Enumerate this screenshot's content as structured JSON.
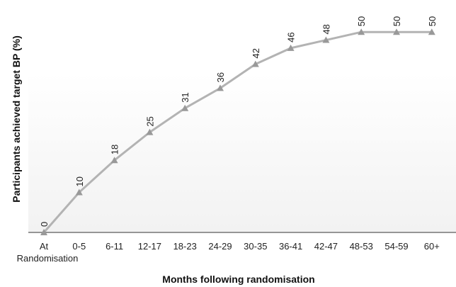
{
  "chart_data": {
    "type": "line",
    "title": "",
    "xlabel": "Months following randomisation",
    "ylabel": "Participants achieved target BP (%)",
    "categories": [
      "At Randomisation",
      "0-5",
      "6-11",
      "12-17",
      "18-23",
      "24-29",
      "30-35",
      "36-41",
      "42-47",
      "48-53",
      "54-59",
      "60+"
    ],
    "series": [
      {
        "values": [
          0,
          10,
          18,
          25,
          31,
          36,
          42,
          46,
          48,
          50,
          50,
          50
        ]
      }
    ],
    "data_labels": [
      "0",
      "10",
      "18",
      "25",
      "31",
      "36",
      "42",
      "46",
      "48",
      "50",
      "50",
      "50"
    ],
    "ylim": [
      0,
      58
    ],
    "grid": false,
    "legend": "none",
    "colors": {
      "line": "#b3b3b3",
      "marker": "#999999",
      "band_top": "#ffffff",
      "band_bottom": "#f2f2f2",
      "axis": "#333333"
    }
  }
}
